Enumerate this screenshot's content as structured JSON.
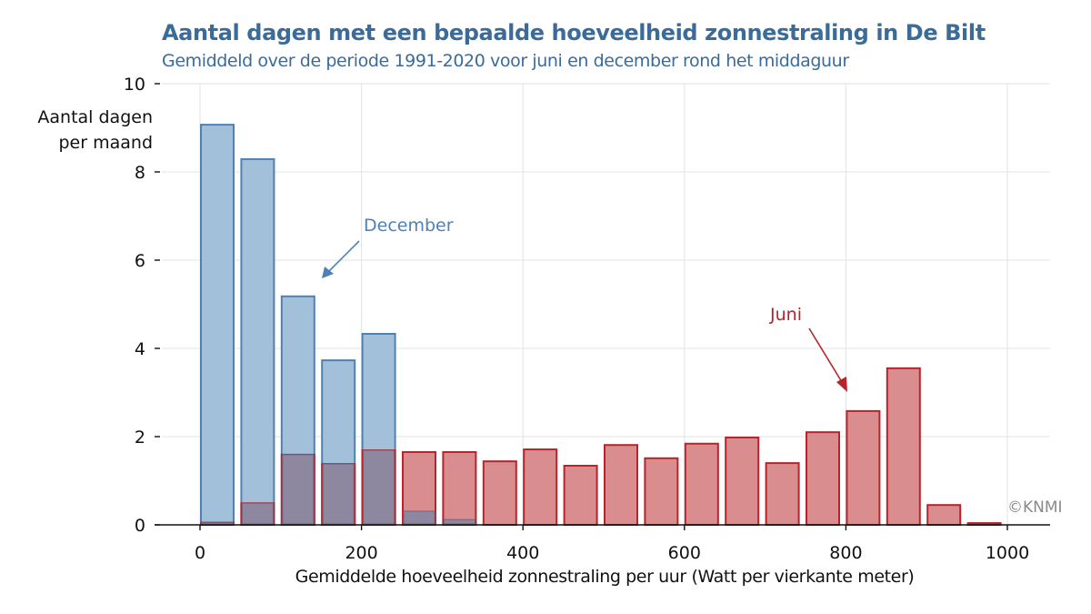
{
  "chart_data": {
    "type": "bar",
    "title": "Aantal dagen met een bepaalde hoeveelheid zonnestraling in De Bilt",
    "subtitle": "Gemiddeld over de periode 1991-2020 voor juni en december rond het middaguur",
    "xlabel": "Gemiddelde hoeveelheid zonnestraling per uur (Watt per vierkante meter)",
    "ylabel_lines": [
      "Aantal dagen",
      "per maand"
    ],
    "xlim": [
      -60,
      1050
    ],
    "ylim": [
      0,
      10
    ],
    "x_ticks": [
      0,
      200,
      400,
      600,
      800,
      1000
    ],
    "y_ticks": [
      0,
      2,
      4,
      6,
      8,
      10
    ],
    "grid": true,
    "bin_width": 50,
    "bins": [
      0,
      50,
      100,
      150,
      200,
      250,
      300,
      350,
      400,
      450,
      500,
      550,
      600,
      650,
      700,
      750,
      800,
      850,
      900,
      950
    ],
    "series": [
      {
        "name": "December",
        "color": "#4f81b4",
        "fill": "#a3c0da",
        "values": [
          9.07,
          8.29,
          5.18,
          3.73,
          4.33,
          0.31,
          0.12,
          0,
          0,
          0,
          0,
          0,
          0,
          0,
          0,
          0,
          0,
          0,
          0,
          0
        ]
      },
      {
        "name": "Juni",
        "color": "#b5252b",
        "fill": "#d98d8f",
        "values": [
          0.05,
          0.49,
          1.59,
          1.38,
          1.69,
          1.65,
          1.65,
          1.44,
          1.71,
          1.34,
          1.81,
          1.51,
          1.84,
          1.98,
          1.4,
          2.1,
          2.58,
          3.55,
          0.45,
          0.04
        ]
      }
    ],
    "annotations": [
      {
        "text": "December",
        "series": "December",
        "color": "#4f81b4",
        "points_to_x": 150,
        "points_to_y": 5.6
      },
      {
        "text": "Juni",
        "series": "Juni",
        "color": "#b5252b",
        "points_to_x": 800,
        "points_to_y": 3.0
      }
    ],
    "overlap_color": "#8e87a0",
    "grid_color": "#e3e3e3"
  },
  "credit": "©KNMI"
}
